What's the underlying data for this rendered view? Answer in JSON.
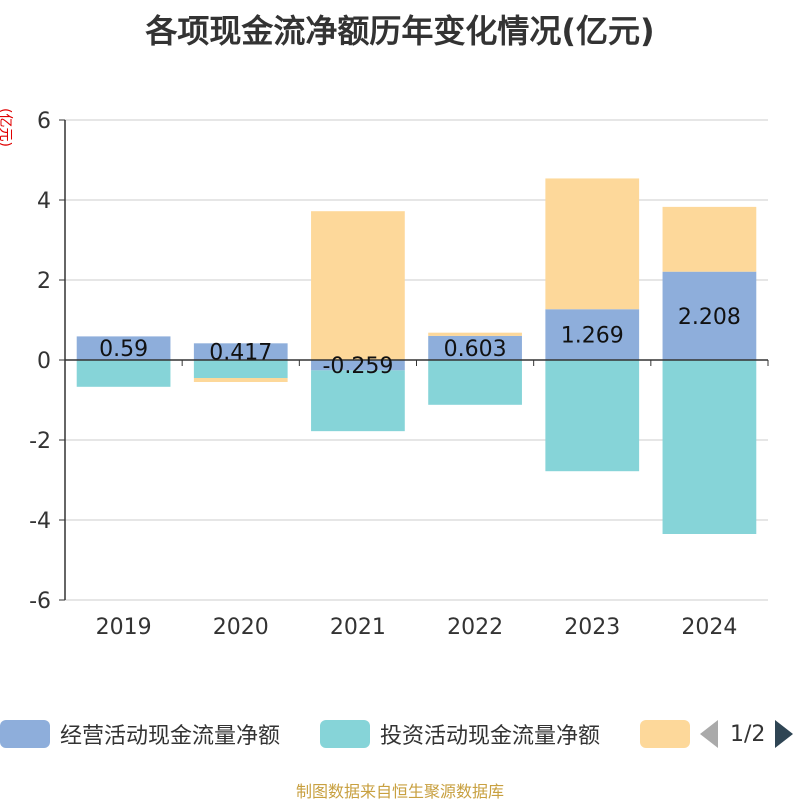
{
  "chart_data": {
    "type": "bar",
    "stacked": true,
    "title": "各项现金流净额历年变化情况(亿元)",
    "ylabel": "(亿元)",
    "categories": [
      "2019",
      "2020",
      "2021",
      "2022",
      "2023",
      "2024"
    ],
    "ylim": [
      -6,
      6
    ],
    "yticks": [
      -6,
      -4,
      -2,
      0,
      2,
      4,
      6
    ],
    "grid": true,
    "series": [
      {
        "name": "经营活动现金流量净额",
        "color": "#8eaedb",
        "values": [
          0.59,
          0.417,
          -0.259,
          0.603,
          1.269,
          2.208
        ],
        "labels": [
          "0.59",
          "0.417",
          "-0.259",
          "0.603",
          "1.269",
          "2.208"
        ]
      },
      {
        "name": "投资活动现金流量净额",
        "color": "#86d4d8",
        "values": [
          -0.67,
          -0.45,
          -1.52,
          -1.12,
          -2.78,
          -4.35
        ]
      },
      {
        "name": "",
        "color": "#fdd89a",
        "values": [
          0,
          -0.1,
          3.72,
          0.08,
          3.27,
          1.62
        ]
      }
    ]
  },
  "legend": {
    "items": [
      {
        "label": "经营活动现金流量净额",
        "color": "#8eaedb"
      },
      {
        "label": "投资活动现金流量净额",
        "color": "#86d4d8"
      },
      {
        "label": "",
        "color": "#fdd89a"
      }
    ],
    "page": "1/2"
  },
  "source": "制图数据来自恒生聚源数据库"
}
